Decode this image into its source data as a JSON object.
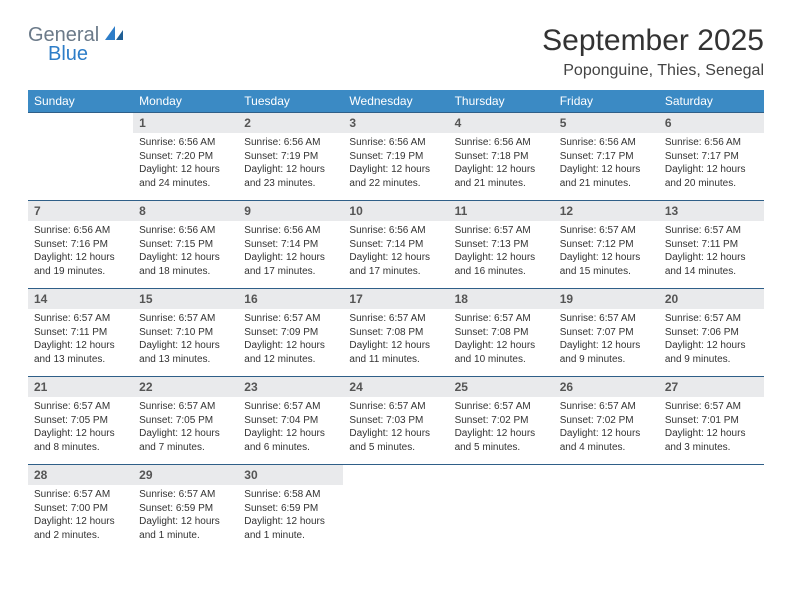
{
  "brand": {
    "top": "General",
    "bottom": "Blue"
  },
  "title": "September 2025",
  "location": "Poponguine, Thies, Senegal",
  "colors": {
    "header_bg": "#3b8ac4",
    "header_text": "#ffffff",
    "daynum_bg": "#e9eaec",
    "rule": "#2f5f88",
    "logo_gray": "#6b7a89",
    "logo_blue": "#2d7dc8"
  },
  "weekdays": [
    "Sunday",
    "Monday",
    "Tuesday",
    "Wednesday",
    "Thursday",
    "Friday",
    "Saturday"
  ],
  "weeks": [
    {
      "nums": [
        "",
        "1",
        "2",
        "3",
        "4",
        "5",
        "6"
      ],
      "info": [
        "",
        "Sunrise: 6:56 AM\nSunset: 7:20 PM\nDaylight: 12 hours and 24 minutes.",
        "Sunrise: 6:56 AM\nSunset: 7:19 PM\nDaylight: 12 hours and 23 minutes.",
        "Sunrise: 6:56 AM\nSunset: 7:19 PM\nDaylight: 12 hours and 22 minutes.",
        "Sunrise: 6:56 AM\nSunset: 7:18 PM\nDaylight: 12 hours and 21 minutes.",
        "Sunrise: 6:56 AM\nSunset: 7:17 PM\nDaylight: 12 hours and 21 minutes.",
        "Sunrise: 6:56 AM\nSunset: 7:17 PM\nDaylight: 12 hours and 20 minutes."
      ]
    },
    {
      "nums": [
        "7",
        "8",
        "9",
        "10",
        "11",
        "12",
        "13"
      ],
      "info": [
        "Sunrise: 6:56 AM\nSunset: 7:16 PM\nDaylight: 12 hours and 19 minutes.",
        "Sunrise: 6:56 AM\nSunset: 7:15 PM\nDaylight: 12 hours and 18 minutes.",
        "Sunrise: 6:56 AM\nSunset: 7:14 PM\nDaylight: 12 hours and 17 minutes.",
        "Sunrise: 6:56 AM\nSunset: 7:14 PM\nDaylight: 12 hours and 17 minutes.",
        "Sunrise: 6:57 AM\nSunset: 7:13 PM\nDaylight: 12 hours and 16 minutes.",
        "Sunrise: 6:57 AM\nSunset: 7:12 PM\nDaylight: 12 hours and 15 minutes.",
        "Sunrise: 6:57 AM\nSunset: 7:11 PM\nDaylight: 12 hours and 14 minutes."
      ]
    },
    {
      "nums": [
        "14",
        "15",
        "16",
        "17",
        "18",
        "19",
        "20"
      ],
      "info": [
        "Sunrise: 6:57 AM\nSunset: 7:11 PM\nDaylight: 12 hours and 13 minutes.",
        "Sunrise: 6:57 AM\nSunset: 7:10 PM\nDaylight: 12 hours and 13 minutes.",
        "Sunrise: 6:57 AM\nSunset: 7:09 PM\nDaylight: 12 hours and 12 minutes.",
        "Sunrise: 6:57 AM\nSunset: 7:08 PM\nDaylight: 12 hours and 11 minutes.",
        "Sunrise: 6:57 AM\nSunset: 7:08 PM\nDaylight: 12 hours and 10 minutes.",
        "Sunrise: 6:57 AM\nSunset: 7:07 PM\nDaylight: 12 hours and 9 minutes.",
        "Sunrise: 6:57 AM\nSunset: 7:06 PM\nDaylight: 12 hours and 9 minutes."
      ]
    },
    {
      "nums": [
        "21",
        "22",
        "23",
        "24",
        "25",
        "26",
        "27"
      ],
      "info": [
        "Sunrise: 6:57 AM\nSunset: 7:05 PM\nDaylight: 12 hours and 8 minutes.",
        "Sunrise: 6:57 AM\nSunset: 7:05 PM\nDaylight: 12 hours and 7 minutes.",
        "Sunrise: 6:57 AM\nSunset: 7:04 PM\nDaylight: 12 hours and 6 minutes.",
        "Sunrise: 6:57 AM\nSunset: 7:03 PM\nDaylight: 12 hours and 5 minutes.",
        "Sunrise: 6:57 AM\nSunset: 7:02 PM\nDaylight: 12 hours and 5 minutes.",
        "Sunrise: 6:57 AM\nSunset: 7:02 PM\nDaylight: 12 hours and 4 minutes.",
        "Sunrise: 6:57 AM\nSunset: 7:01 PM\nDaylight: 12 hours and 3 minutes."
      ]
    },
    {
      "nums": [
        "28",
        "29",
        "30",
        "",
        "",
        "",
        ""
      ],
      "info": [
        "Sunrise: 6:57 AM\nSunset: 7:00 PM\nDaylight: 12 hours and 2 minutes.",
        "Sunrise: 6:57 AM\nSunset: 6:59 PM\nDaylight: 12 hours and 1 minute.",
        "Sunrise: 6:58 AM\nSunset: 6:59 PM\nDaylight: 12 hours and 1 minute.",
        "",
        "",
        "",
        ""
      ]
    }
  ]
}
